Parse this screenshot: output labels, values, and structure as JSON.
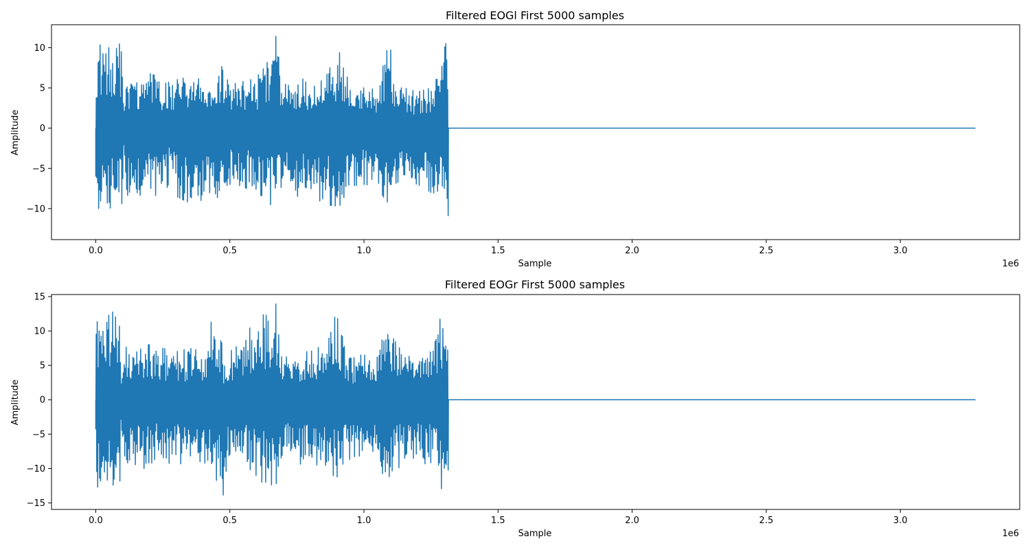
{
  "figure": {
    "background": "#ffffff",
    "line_color": "#1f77b4"
  },
  "chart_data": [
    {
      "type": "line",
      "title": "Filtered EOGl First 5000 samples",
      "xlabel": "Sample",
      "ylabel": "Amplitude",
      "x_offset_label": "1e6",
      "xlim": [
        -165000,
        3445000
      ],
      "ylim": [
        -13.85,
        12.85
      ],
      "xticks": [
        0,
        0.5,
        1.0,
        1.5,
        2.0,
        2.5,
        3.0
      ],
      "xtick_labels": [
        "0.0",
        "0.5",
        "1.0",
        "1.5",
        "2.0",
        "2.5",
        "3.0"
      ],
      "yticks": [
        -10,
        -5,
        0,
        5,
        10
      ],
      "ytick_labels": [
        "−10",
        "−5",
        "0",
        "5",
        "10"
      ],
      "grid": false,
      "series": [
        {
          "color": "#1f77b4",
          "x": [
            0,
            10000,
            40000,
            50000,
            70000,
            100000,
            105000,
            110000,
            150000,
            200000,
            250000,
            280000,
            300000,
            350000,
            400000,
            450000,
            470000,
            500000,
            550000,
            600000,
            650000,
            670000,
            700000,
            750000,
            800000,
            850000,
            900000,
            920000,
            950000,
            1000000,
            1050000,
            1080000,
            1100000,
            1120000,
            1150000,
            1200000,
            1250000,
            1280000,
            1300000,
            1310000,
            1315000,
            1320000,
            3280000
          ],
          "upper": [
            6.0,
            10.3,
            10.5,
            10.6,
            10.4,
            10.5,
            2.0,
            5.8,
            6.5,
            6.8,
            6.2,
            5.5,
            6.0,
            6.4,
            6.0,
            7.5,
            9.5,
            5.4,
            5.8,
            6.2,
            9.5,
            11.7,
            5.8,
            6.0,
            6.2,
            5.8,
            9.5,
            9.2,
            5.0,
            5.0,
            4.8,
            9.6,
            9.7,
            5.0,
            5.0,
            4.5,
            5.0,
            9.5,
            10.8,
            11.5,
            11.2,
            0,
            0
          ],
          "lower": [
            -12.6,
            -10.0,
            -9.8,
            -9.9,
            -10.1,
            -10.0,
            -2.0,
            -8.3,
            -8.5,
            -8.0,
            -8.8,
            -6.2,
            -8.5,
            -9.3,
            -9.5,
            -9.5,
            -9.6,
            -7.0,
            -7.2,
            -8.5,
            -9.5,
            -9.6,
            -7.0,
            -8.5,
            -8.0,
            -9.5,
            -9.7,
            -9.5,
            -7.2,
            -7.0,
            -7.2,
            -9.0,
            -9.5,
            -6.8,
            -6.5,
            -7.0,
            -8.0,
            -9.6,
            -10.5,
            -11.2,
            -10.8,
            0,
            0
          ]
        }
      ]
    },
    {
      "type": "line",
      "title": "Filtered EOGr First 5000 samples",
      "xlabel": "Sample",
      "ylabel": "Amplitude",
      "x_offset_label": "1e6",
      "xlim": [
        -165000,
        3445000
      ],
      "ylim": [
        -15.95,
        15.3
      ],
      "xticks": [
        0,
        0.5,
        1.0,
        1.5,
        2.0,
        2.5,
        3.0
      ],
      "xtick_labels": [
        "0.0",
        "0.5",
        "1.0",
        "1.5",
        "2.0",
        "2.5",
        "3.0"
      ],
      "yticks": [
        -15,
        -10,
        -5,
        0,
        5,
        10,
        15
      ],
      "ytick_labels": [
        "−15",
        "−10",
        "−5",
        "0",
        "5",
        "10",
        "15"
      ],
      "grid": false,
      "series": [
        {
          "color": "#1f77b4",
          "x": [
            0,
            10000,
            40000,
            70000,
            90000,
            95000,
            100000,
            150000,
            200000,
            250000,
            300000,
            350000,
            400000,
            430000,
            450000,
            470000,
            480000,
            500000,
            550000,
            600000,
            650000,
            670000,
            700000,
            750000,
            800000,
            850000,
            880000,
            900000,
            950000,
            1000000,
            1050000,
            1080000,
            1100000,
            1150000,
            1200000,
            1250000,
            1280000,
            1300000,
            1310000,
            1315000,
            1320000,
            3280000
          ],
          "upper": [
            10.0,
            12.5,
            12.0,
            13.0,
            12.8,
            3.0,
            7.5,
            8.0,
            8.0,
            7.5,
            7.0,
            7.5,
            7.0,
            12.0,
            11.5,
            9.0,
            5.5,
            7.0,
            8.5,
            12.5,
            12.2,
            14.3,
            6.5,
            7.0,
            7.0,
            8.0,
            12.0,
            12.0,
            6.5,
            6.5,
            6.2,
            10.5,
            9.5,
            6.5,
            6.0,
            7.0,
            11.5,
            12.8,
            13.0,
            12.8,
            0,
            0
          ],
          "lower": [
            -12.0,
            -13.0,
            -12.5,
            -13.5,
            -13.0,
            -3.0,
            -9.5,
            -10.0,
            -10.0,
            -9.0,
            -9.5,
            -9.0,
            -9.0,
            -12.5,
            -12.5,
            -14.8,
            -13.0,
            -9.5,
            -9.5,
            -12.0,
            -12.0,
            -13.5,
            -9.0,
            -9.5,
            -9.0,
            -10.0,
            -12.0,
            -12.0,
            -9.0,
            -8.5,
            -8.5,
            -12.0,
            -12.0,
            -8.5,
            -8.5,
            -10.0,
            -12.5,
            -13.5,
            -13.5,
            -13.2,
            0,
            0
          ]
        }
      ]
    }
  ]
}
